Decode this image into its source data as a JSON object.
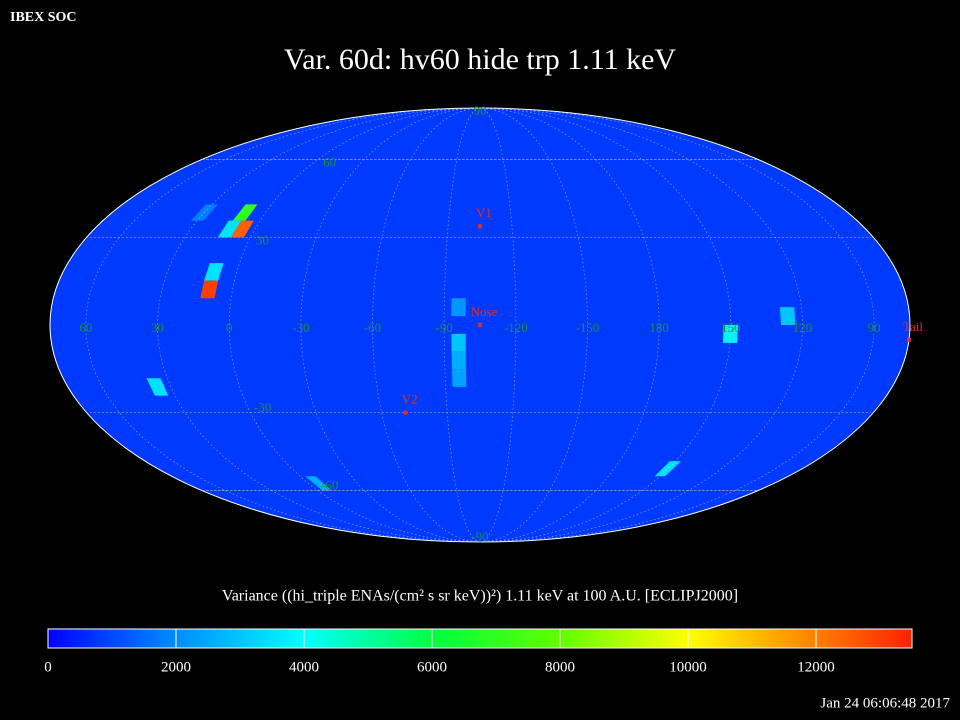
{
  "header": "IBEX SOC",
  "footer": "Jan 24 06:06:48 2017",
  "chart_data": {
    "type": "mollweide-map",
    "title": "Var. 60d: hv60 hide trp 1.11 keV",
    "center_lon": -105,
    "lon_labels": [
      60,
      30,
      0,
      -30,
      -60,
      -90,
      -120,
      -150,
      180,
      150,
      120,
      90
    ],
    "lat_labels": [
      90,
      60,
      30,
      -30,
      -60,
      -90
    ],
    "background_value": 800,
    "cell_size": 6,
    "cells": [
      {
        "lon": 10,
        "lat": 39,
        "value": 7000
      },
      {
        "lon": 6,
        "lat": 33,
        "value": 12500
      },
      {
        "lon": 12,
        "lat": 33,
        "value": 3500
      },
      {
        "lon": 10,
        "lat": 18,
        "value": 3500
      },
      {
        "lon": 10,
        "lat": 12,
        "value": 13000
      },
      {
        "lon": -96,
        "lat": -6,
        "value": 3000
      },
      {
        "lon": -96,
        "lat": -12,
        "value": 2600
      },
      {
        "lon": -96,
        "lat": -18,
        "value": 2400
      },
      {
        "lon": -96,
        "lat": 6,
        "value": 2200
      },
      {
        "lon": 150,
        "lat": -3,
        "value": 3800
      },
      {
        "lon": 126,
        "lat": 3,
        "value": 3000
      },
      {
        "lon": 36,
        "lat": -21,
        "value": 3500
      },
      {
        "lon": 150,
        "lat": -51,
        "value": 3500
      },
      {
        "lon": 30,
        "lat": 39,
        "value": 1800
      },
      {
        "lon": -6,
        "lat": -57,
        "value": 2600
      }
    ],
    "markers": [
      {
        "name": "V1",
        "lon": -105,
        "lat": 34
      },
      {
        "name": "Nose",
        "lon": -105,
        "lat": 0
      },
      {
        "name": "V2",
        "lon": -71,
        "lat": -30
      },
      {
        "name": "Tail",
        "lon": 75,
        "lat": -5
      }
    ],
    "colorbar_label": "Variance ((hi_triple ENAs/(cm² s sr keV))²) 1.11 keV at 100 A.U. [ECLIPJ2000]",
    "colorbar_lim": [
      0,
      13500
    ],
    "colorbar_ticks": [
      0,
      2000,
      4000,
      6000,
      8000,
      10000,
      12000
    ],
    "colormap": [
      [
        0,
        "#0000ff"
      ],
      [
        1800,
        "#0080ff"
      ],
      [
        4000,
        "#00ffff"
      ],
      [
        6000,
        "#00ff40"
      ],
      [
        8000,
        "#60ff00"
      ],
      [
        10000,
        "#ffff00"
      ],
      [
        13500,
        "#ff2000"
      ]
    ]
  }
}
